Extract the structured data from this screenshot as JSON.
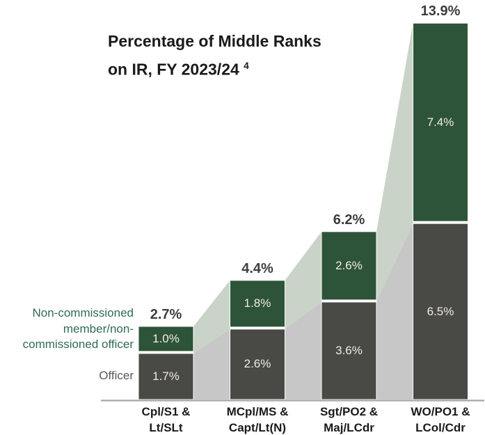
{
  "title": {
    "line1": "Percentage of Middle Ranks",
    "line2": "on IR, FY 2023/24",
    "superscript": "4"
  },
  "legend": {
    "non_commissioned_label": "Non-commissioned\nmember/non-\ncommissioned officer",
    "officer_label": "Officer"
  },
  "colors": {
    "green_segment": "#2d5438",
    "dark_segment": "#494946",
    "ribbon_green": "#c9d3c8",
    "ribbon_gray": "#c7c7c7",
    "axis_line": "#a6a6a6",
    "value_label": "#f1ece1",
    "total_label": "#3d3d3d",
    "legend_green_text": "#2f6b57",
    "legend_gray_text": "#595959"
  },
  "chart_data": {
    "type": "bar",
    "stacked": true,
    "title": "Percentage of Middle Ranks on IR, FY 2023/24",
    "categories": [
      "Cpl/S1 &\nLt/SLt",
      "MCpl/MS &\nCapt/Lt(N)",
      "Sgt/PO2 &\nMaj/LCdr",
      "WO/PO1 &\nLCol/Cdr"
    ],
    "series": [
      {
        "name": "Non-commissioned member/non-commissioned officer",
        "position": "top",
        "values": [
          1.0,
          1.8,
          2.6,
          7.4
        ],
        "labels": [
          "1.0%",
          "1.8%",
          "2.6%",
          "7.4%"
        ]
      },
      {
        "name": "Officer",
        "position": "bottom",
        "values": [
          1.7,
          2.6,
          3.6,
          6.5
        ],
        "labels": [
          "1.7%",
          "2.6%",
          "3.6%",
          "6.5%"
        ]
      }
    ],
    "totals": {
      "values": [
        2.7,
        4.4,
        6.2,
        13.9
      ],
      "labels": [
        "2.7%",
        "4.4%",
        "6.2%",
        "13.9%"
      ]
    },
    "ylabel": "",
    "xlabel": "",
    "grid": false,
    "legend_position": "left",
    "connector_ribbons": true
  }
}
